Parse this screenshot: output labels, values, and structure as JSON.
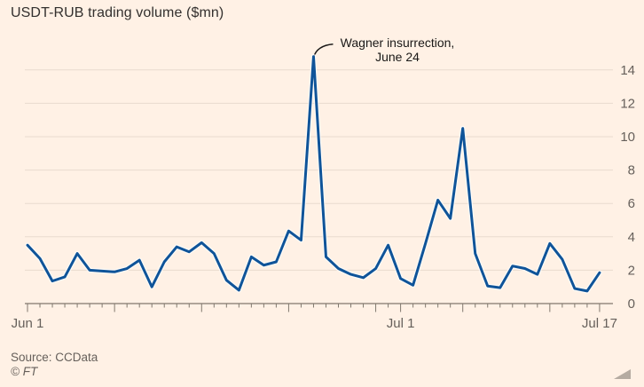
{
  "title": "USDT-RUB trading volume ($mn)",
  "annotation": {
    "line1": "Wagner insurrection,",
    "line2": "June 24"
  },
  "source": "Source: CCData",
  "copyright": "© FT",
  "colors": {
    "background": "#FFF1E5",
    "line": "#0F5499",
    "line_casing": "rgba(255,255,255,0.7)",
    "grid": "#E9DBCE",
    "axis": "#80786E",
    "title_text": "#33302E",
    "muted_text": "#66605B",
    "annotation_text": "#1A1817",
    "corner": "#B5ABA1"
  },
  "chart_data": {
    "type": "line",
    "title": "USDT-RUB trading volume ($mn)",
    "xlabel": "",
    "ylabel": "",
    "unit": "$mn",
    "legend": null,
    "grid": "horizontal",
    "y_axis_side": "right",
    "ylim": [
      0,
      15
    ],
    "yticks": [
      0,
      2,
      4,
      6,
      8,
      10,
      12,
      14
    ],
    "xticks_labeled": [
      "Jun 1",
      "Jul 1",
      "Jul 17"
    ],
    "major_tick_dates": [
      "Jun 1",
      "Jun 8",
      "Jun 15",
      "Jun 22",
      "Jun 29",
      "Jul 1",
      "Jul 6",
      "Jul 13",
      "Jul 17"
    ],
    "x": [
      "Jun 1",
      "Jun 2",
      "Jun 3",
      "Jun 4",
      "Jun 5",
      "Jun 6",
      "Jun 7",
      "Jun 8",
      "Jun 9",
      "Jun 10",
      "Jun 11",
      "Jun 12",
      "Jun 13",
      "Jun 14",
      "Jun 15",
      "Jun 16",
      "Jun 17",
      "Jun 18",
      "Jun 19",
      "Jun 20",
      "Jun 21",
      "Jun 22",
      "Jun 23",
      "Jun 24",
      "Jun 25",
      "Jun 26",
      "Jun 27",
      "Jun 28",
      "Jun 29",
      "Jun 30",
      "Jul 1",
      "Jul 2",
      "Jul 3",
      "Jul 4",
      "Jul 5",
      "Jul 6",
      "Jul 7",
      "Jul 8",
      "Jul 9",
      "Jul 10",
      "Jul 11",
      "Jul 12",
      "Jul 13",
      "Jul 14",
      "Jul 15",
      "Jul 16",
      "Jul 17"
    ],
    "values": [
      3.5,
      2.7,
      1.35,
      1.6,
      3.0,
      2.0,
      1.95,
      1.9,
      2.1,
      2.6,
      1.0,
      2.5,
      3.4,
      3.1,
      3.65,
      3.0,
      1.4,
      0.8,
      2.8,
      2.3,
      2.5,
      4.35,
      3.8,
      14.8,
      2.8,
      2.1,
      1.75,
      1.55,
      2.1,
      3.5,
      1.5,
      1.1,
      3.6,
      6.2,
      5.1,
      10.5,
      3.0,
      1.05,
      0.95,
      2.25,
      2.1,
      1.75,
      3.6,
      2.65,
      0.9,
      0.75,
      1.85
    ],
    "annotation_point": {
      "date": "Jun 24",
      "value": 14.8,
      "label": "Wagner insurrection, June 24"
    }
  }
}
